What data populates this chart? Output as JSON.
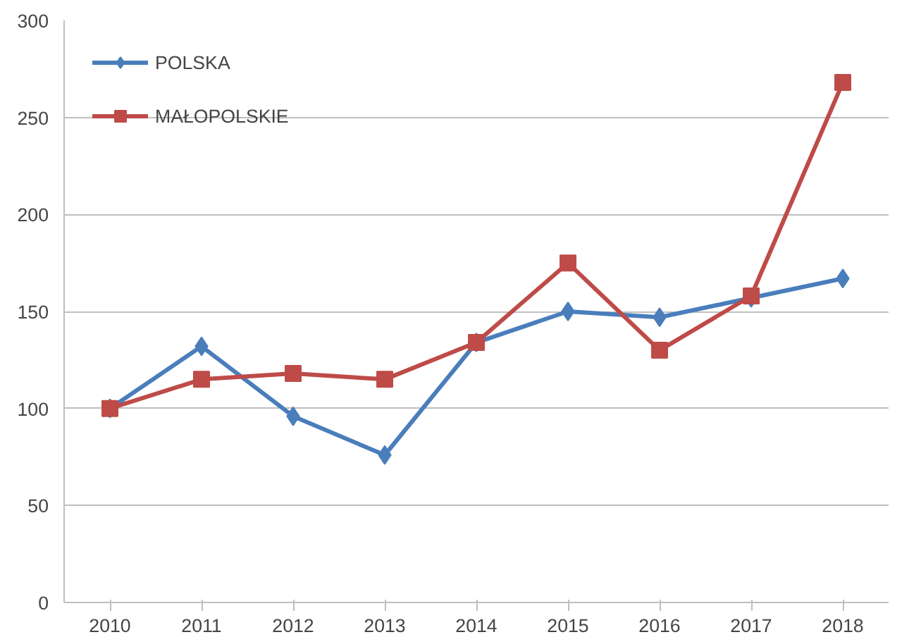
{
  "chart_data": {
    "type": "line",
    "categories": [
      "2010",
      "2011",
      "2012",
      "2013",
      "2014",
      "2015",
      "2016",
      "2017",
      "2018"
    ],
    "series": [
      {
        "name": "POLSKA",
        "color": "#4a7ebb",
        "marker": "diamond",
        "values": [
          100,
          132,
          96,
          76,
          134,
          150,
          147,
          157,
          167
        ]
      },
      {
        "name": "MAŁOPOLSKIE",
        "color": "#be4b48",
        "marker": "square",
        "values": [
          100,
          115,
          118,
          115,
          134,
          175,
          130,
          158,
          268
        ]
      }
    ],
    "ylim": [
      0,
      300
    ],
    "yticks": [
      0,
      50,
      100,
      150,
      200,
      250,
      300
    ],
    "grid": "y",
    "legend": "top left",
    "line_style": "solid"
  }
}
